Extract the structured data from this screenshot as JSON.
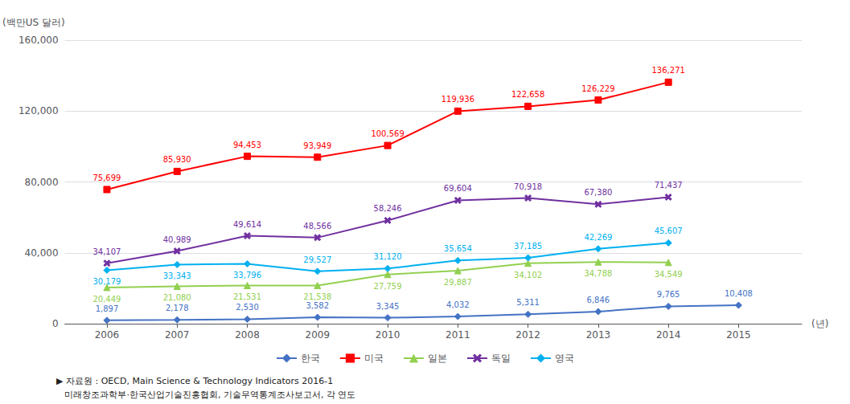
{
  "chart_data": {
    "type": "line",
    "xlabel": "(년)",
    "ylabel": "(백만US 달러)",
    "x": [
      2006,
      2007,
      2008,
      2009,
      2010,
      2011,
      2012,
      2013,
      2014,
      2015
    ],
    "xlim": [
      2005.4,
      2015.9
    ],
    "xticks": [
      2006,
      2007,
      2008,
      2009,
      2010,
      2011,
      2012,
      2013,
      2014,
      2015
    ],
    "ylim": [
      0,
      160000
    ],
    "yticks": [
      0,
      {
        "value": 40000,
        "label": "40,000"
      },
      {
        "value": 80000,
        "label": "80,000"
      },
      {
        "value": 120000,
        "label": "120,000"
      },
      {
        "value": 160000,
        "label": "160,000"
      }
    ],
    "grid": true,
    "legend": "bottom",
    "data_labels": true,
    "annotations": [
      "▶ 자료원 : OECD, Main Science & Technology Indicators 2016-1",
      "   미래창조과학부·한국산업기술진흥협회, 기술무역통계조사보고서, 각 연도"
    ],
    "series": [
      {
        "name": "한국",
        "color": "#4472C4",
        "marker": "diamond",
        "values": [
          1897,
          2178,
          2530,
          3582,
          3345,
          4032,
          5311,
          6846,
          9765,
          10408
        ],
        "value_labels": [
          "1,897",
          "2,178",
          "2,530",
          "3,582",
          "3,345",
          "4,032",
          "5,311",
          "6,846",
          "9,765",
          "10,408"
        ]
      },
      {
        "name": "미국",
        "color": "#FF0000",
        "marker": "square",
        "values": [
          75699,
          85930,
          94453,
          93949,
          100569,
          119936,
          122658,
          126229,
          136271,
          null
        ],
        "value_labels": [
          "75,699",
          "85,930",
          "94,453",
          "93,949",
          "100,569",
          "119,936",
          "122,658",
          "126,229",
          "136,271",
          null
        ]
      },
      {
        "name": "일본",
        "color": "#92D050",
        "marker": "triangle",
        "values": [
          20449,
          21080,
          21531,
          21538,
          27759,
          29887,
          34102,
          34788,
          34549,
          null
        ],
        "value_labels": [
          "20,449",
          "21,080",
          "21,531",
          "21,538",
          "27,759",
          "29,887",
          "34,102",
          "34,788",
          "34,549",
          null
        ]
      },
      {
        "name": "독일",
        "color": "#7030A0",
        "marker": "x",
        "values": [
          34107,
          40989,
          49614,
          48566,
          58246,
          69604,
          70918,
          67380,
          71437,
          null
        ],
        "value_labels": [
          "34,107",
          "40,989",
          "49,614",
          "48,566",
          "58,246",
          "69,604",
          "70,918",
          "67,380",
          "71,437",
          null
        ]
      },
      {
        "name": "영국",
        "color": "#00B0F0",
        "marker": "diamond",
        "values": [
          30179,
          33343,
          33796,
          29527,
          31120,
          35654,
          37185,
          42269,
          45607,
          null
        ],
        "value_labels": [
          "30,179",
          "33,343",
          "33,796",
          "29,527",
          "31,120",
          "35,654",
          "37,185",
          "42,269",
          "45,607",
          null
        ]
      }
    ]
  }
}
